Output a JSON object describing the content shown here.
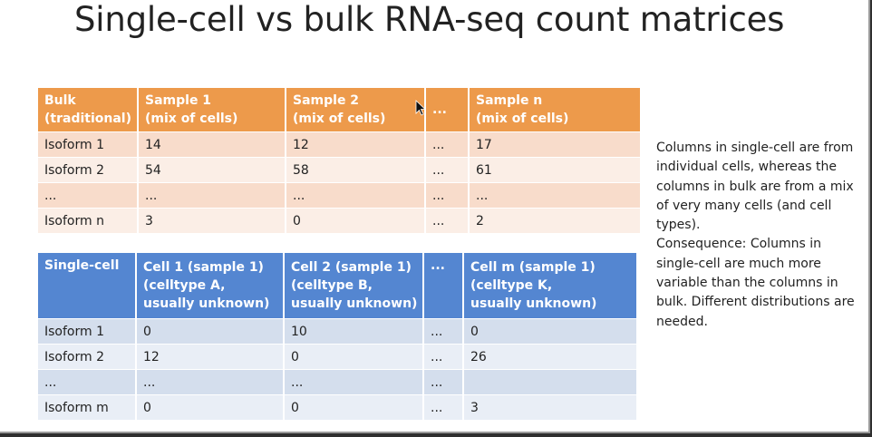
{
  "slide": {
    "title": "Single-cell vs bulk RNA-seq count matrices"
  },
  "bulk_table": {
    "headers": [
      [
        "Bulk",
        "(traditional)"
      ],
      [
        "Sample 1",
        "(mix of cells)"
      ],
      [
        "Sample 2",
        "(mix of cells)"
      ],
      [
        "...",
        ""
      ],
      [
        "Sample n",
        "(mix of cells)"
      ]
    ],
    "rows": [
      [
        "Isoform 1",
        "14",
        "12",
        "...",
        "17"
      ],
      [
        "Isoform 2",
        "54",
        "58",
        "...",
        "61"
      ],
      [
        "...",
        "...",
        "...",
        "...",
        "..."
      ],
      [
        "Isoform n",
        "3",
        "0",
        "...",
        "2"
      ]
    ],
    "header_color": "#ed9a4b"
  },
  "singlecell_table": {
    "headers": [
      [
        "Single-cell",
        "",
        ""
      ],
      [
        "Cell 1 (sample 1)",
        "(celltype A,",
        "usually unknown)"
      ],
      [
        "Cell 2 (sample 1)",
        "(celltype B,",
        "usually unknown)"
      ],
      [
        "...",
        "",
        ""
      ],
      [
        "Cell m (sample 1)",
        "(celltype K,",
        "usually unknown)"
      ]
    ],
    "rows": [
      [
        "Isoform 1",
        "0",
        "10",
        "...",
        "0"
      ],
      [
        "Isoform 2",
        "12",
        "0",
        "...",
        "26"
      ],
      [
        "...",
        "...",
        "...",
        "...",
        ""
      ],
      [
        "Isoform m",
        "0",
        "0",
        "...",
        "3"
      ]
    ],
    "header_color": "#5486d1"
  },
  "note": {
    "paragraph1": "Columns in single-cell are from individual cells, whereas the columns in bulk are from a mix of very many cells (and cell types).",
    "paragraph2": "Consequence: Columns in single-cell  are much more variable than the columns in bulk. Different distributions are needed."
  },
  "icons": {
    "cursor": "mouse-pointer-icon"
  }
}
